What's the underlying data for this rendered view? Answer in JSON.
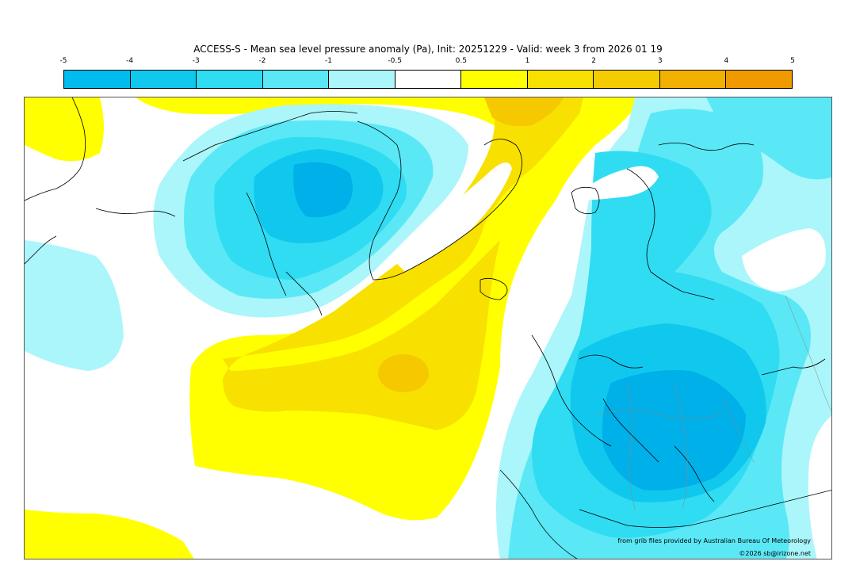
{
  "title": "ACCESS-S - Mean sea level pressure anomaly (Pa), Init: 20251229 - Valid: week 3 from 2026 01 19",
  "colorbar": {
    "ticks": [
      "-5",
      "-4",
      "-3",
      "-2",
      "-1",
      "-0.5",
      "0.5",
      "1",
      "2",
      "3",
      "4",
      "5"
    ],
    "colors": [
      "#00bbee",
      "#10c8ee",
      "#30dcf2",
      "#5ae8f6",
      "#aaf6fa",
      "#ffffff",
      "#ffff00",
      "#f8e000",
      "#f5cc00",
      "#f2b000",
      "#f09a00"
    ]
  },
  "credits": {
    "source": "from grib files provided by Australian Bureau Of Meteorology",
    "copyright": "©2026 sb@irizone.net"
  },
  "colors": {
    "neg_light": "#aaf6fa",
    "neg_mid": "#5ae8f6",
    "neg_mid2": "#30dcf2",
    "neg_strong": "#10c8ee",
    "neg_strongest": "#00b0e8",
    "pos_light": "#ffff00",
    "pos_mid": "#f8e000",
    "pos_strong": "#f5c800"
  }
}
